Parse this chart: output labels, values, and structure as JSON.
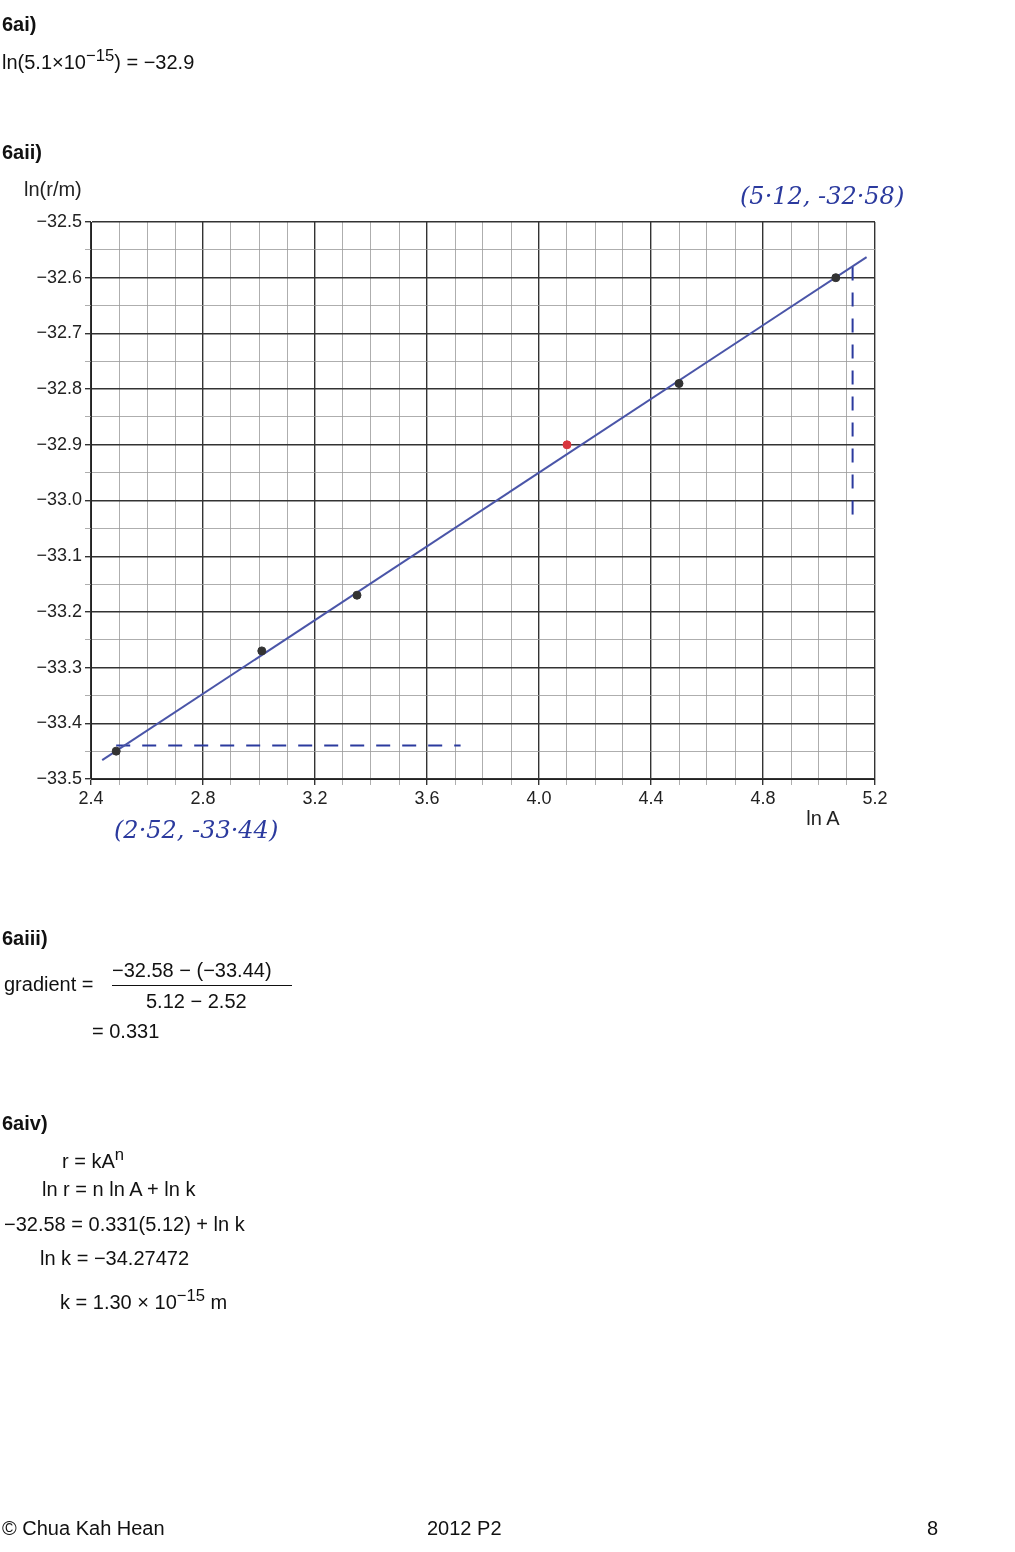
{
  "chart_data": {
    "type": "scatter",
    "title": "6aii)",
    "xlabel": "ln A",
    "ylabel": "ln(r/m)",
    "xlim": [
      2.4,
      5.2
    ],
    "xticks": [
      {
        "value": 2.4,
        "label": "2.4"
      },
      {
        "value": 2.5,
        "label": null
      },
      {
        "value": 2.6,
        "label": null
      },
      {
        "value": 2.7,
        "label": null
      },
      {
        "value": 2.8,
        "label": "2.8"
      },
      {
        "value": 2.9,
        "label": null
      },
      {
        "value": 3.0,
        "label": null
      },
      {
        "value": 3.1,
        "label": null
      },
      {
        "value": 3.2,
        "label": "3.2"
      },
      {
        "value": 3.3,
        "label": null
      },
      {
        "value": 3.4,
        "label": null
      },
      {
        "value": 3.5,
        "label": null
      },
      {
        "value": 3.6,
        "label": "3.6"
      },
      {
        "value": 3.7,
        "label": null
      },
      {
        "value": 3.8,
        "label": null
      },
      {
        "value": 3.9,
        "label": null
      },
      {
        "value": 4.0,
        "label": "4.0"
      },
      {
        "value": 4.1,
        "label": null
      },
      {
        "value": 4.2,
        "label": null
      },
      {
        "value": 4.3,
        "label": null
      },
      {
        "value": 4.4,
        "label": "4.4"
      },
      {
        "value": 4.5,
        "label": null
      },
      {
        "value": 4.6,
        "label": null
      },
      {
        "value": 4.7,
        "label": null
      },
      {
        "value": 4.8,
        "label": "4.8"
      },
      {
        "value": 4.9,
        "label": null
      },
      {
        "value": 5.0,
        "label": null
      },
      {
        "value": 5.1,
        "label": null
      },
      {
        "value": 5.2,
        "label": "5.2"
      }
    ],
    "ylim": [
      -33.5,
      -32.5
    ],
    "yticks": [
      {
        "value": -32.5,
        "label": "−32.5"
      },
      {
        "value": -32.55,
        "label": null
      },
      {
        "value": -32.6,
        "label": "−32.6"
      },
      {
        "value": -32.65,
        "label": null
      },
      {
        "value": -32.7,
        "label": "−32.7"
      },
      {
        "value": -32.75,
        "label": null
      },
      {
        "value": -32.8,
        "label": "−32.8"
      },
      {
        "value": -32.85,
        "label": null
      },
      {
        "value": -32.9,
        "label": "−32.9"
      },
      {
        "value": -32.95,
        "label": null
      },
      {
        "value": -33.0,
        "label": "−33.0"
      },
      {
        "value": -33.05,
        "label": null
      },
      {
        "value": -33.1,
        "label": "−33.1"
      },
      {
        "value": -33.15,
        "label": null
      },
      {
        "value": -33.2,
        "label": "−33.2"
      },
      {
        "value": -33.25,
        "label": null
      },
      {
        "value": -33.3,
        "label": "−33.3"
      },
      {
        "value": -33.35,
        "label": null
      },
      {
        "value": -33.4,
        "label": "−33.4"
      },
      {
        "value": -33.45,
        "label": null
      },
      {
        "value": -33.5,
        "label": "−33.5"
      }
    ],
    "grid": true,
    "marker": "circle",
    "series": [
      {
        "type": "line",
        "marker": "none",
        "color": "#4a55a8",
        "x": [
          2.44,
          5.17
        ],
        "values": [
          -33.466,
          -32.563
        ]
      },
      {
        "type": "line",
        "marker": "none",
        "line_style": "dashed",
        "color": "#2b3a9e",
        "x": [
          2.49,
          3.72
        ],
        "values": [
          -33.44,
          -33.44
        ]
      },
      {
        "type": "line",
        "marker": "none",
        "line_style": "dashed",
        "color": "#2b3a9e",
        "x": [
          5.12,
          5.12
        ],
        "values": [
          -32.58,
          -33.03
        ]
      },
      {
        "colors": [
          "#333333",
          "#333333",
          "#333333",
          "#d9363e",
          "#333333",
          "#333333"
        ],
        "x": [
          2.49,
          3.01,
          3.35,
          4.1,
          4.5,
          5.06
        ],
        "values": [
          -33.45,
          -33.27,
          -33.17,
          -32.9,
          -32.79,
          -32.6
        ]
      }
    ],
    "annotations": [
      "6ai)",
      "ln(5.1×10$^{−15}$) = −32.9",
      "6aiii)",
      "gradient =",
      "−32.58 − (−33.44)",
      "5.12 − 2.52",
      "= 0.331",
      "6aiv)",
      "r = kA$^{n}$",
      "ln r = n ln A + ln k",
      "−32.58 = 0.331(5.12) + ln k",
      "ln k = −34.27472",
      "k = 1.30 × 10$^{−15}$  m",
      "© Chua Kah Hean",
      "2012 P2",
      "8",
      "(5·12, -32·58)",
      "(2·52, -33·44)"
    ]
  }
}
